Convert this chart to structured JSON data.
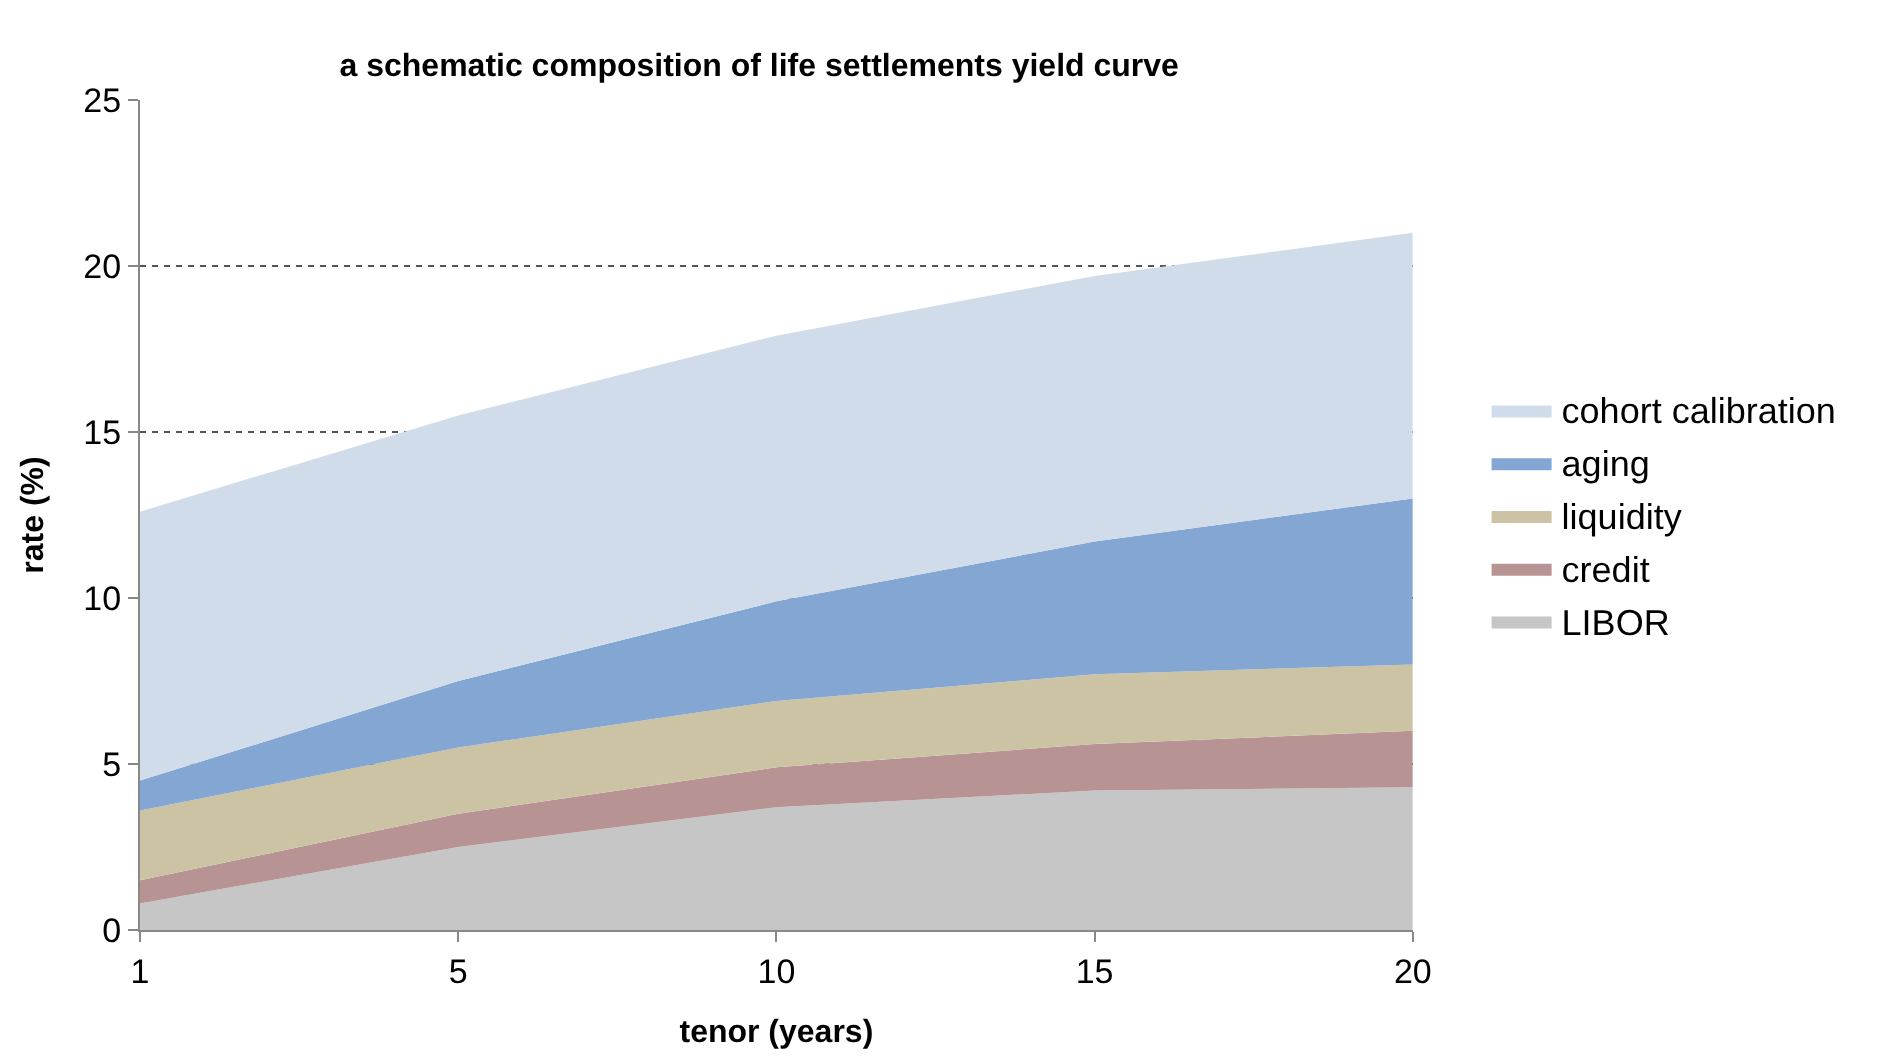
{
  "chart_data": {
    "type": "area",
    "title": "a schematic composition of life settlements yield curve",
    "xlabel": "tenor (years)",
    "ylabel": "rate (%)",
    "categories": [
      "1",
      "5",
      "10",
      "15",
      "20"
    ],
    "stacked": true,
    "series": [
      {
        "name": "LIBOR",
        "color": "#c6c6c6",
        "values": [
          0.8,
          2.5,
          3.7,
          4.2,
          4.3
        ]
      },
      {
        "name": "credit",
        "color": "#b79393",
        "values": [
          0.7,
          1.0,
          1.2,
          1.4,
          1.7
        ]
      },
      {
        "name": "liquidity",
        "color": "#ccc3a4",
        "values": [
          2.1,
          2.0,
          2.0,
          2.1,
          2.0
        ]
      },
      {
        "name": "aging",
        "color": "#84a6d2",
        "values": [
          0.9,
          2.0,
          3.0,
          4.0,
          5.0
        ]
      },
      {
        "name": "cohort calibration",
        "color": "#d0dcea",
        "values": [
          8.1,
          8.0,
          8.0,
          8.0,
          8.0
        ]
      }
    ],
    "ylim": [
      0,
      25
    ],
    "yticks": [
      0,
      5,
      10,
      15,
      20,
      25
    ],
    "grid": "y",
    "legend": "right"
  }
}
